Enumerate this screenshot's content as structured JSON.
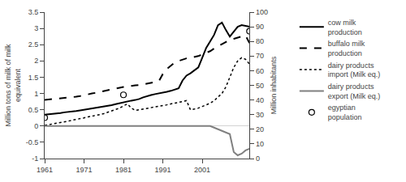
{
  "chart_data": {
    "type": "line",
    "x": [
      1961,
      1962,
      1963,
      1964,
      1965,
      1966,
      1967,
      1968,
      1969,
      1970,
      1971,
      1972,
      1973,
      1974,
      1975,
      1976,
      1977,
      1978,
      1979,
      1980,
      1981,
      1982,
      1983,
      1984,
      1985,
      1986,
      1987,
      1988,
      1989,
      1990,
      1991,
      1992,
      1993,
      1994,
      1995,
      1996,
      1997,
      1998,
      1999,
      2000,
      2001,
      2002,
      2003,
      2004,
      2005,
      2006,
      2007,
      2008,
      2009,
      2010,
      2011,
      2012,
      2013
    ],
    "xlim": [
      1961,
      2013
    ],
    "xticks": [
      1961,
      1971,
      1981,
      1991,
      2001
    ],
    "ylim": [
      -1.0,
      3.5
    ],
    "yticks": [
      -1.0,
      -0.5,
      0.0,
      0.5,
      1.0,
      1.5,
      2.0,
      2.5,
      3.0,
      3.5
    ],
    "y2lim": [
      0,
      100
    ],
    "y2ticks": [
      0,
      10,
      20,
      30,
      40,
      50,
      60,
      70,
      80,
      90,
      100
    ],
    "ylabel": "Million tons of milk of milk\nequivalent",
    "y2label": "Million inhabitants",
    "grid": false,
    "legend": "right",
    "series": [
      {
        "name": "cow milk\nproduction",
        "color": "#000000",
        "line_style": "solid",
        "values": [
          0.35,
          0.36,
          0.37,
          0.38,
          0.4,
          0.42,
          0.43,
          0.44,
          0.46,
          0.48,
          0.5,
          0.52,
          0.53,
          0.55,
          0.57,
          0.59,
          0.62,
          0.64,
          0.67,
          0.7,
          0.72,
          0.75,
          0.78,
          0.8,
          0.83,
          0.88,
          0.92,
          0.95,
          0.98,
          1.0,
          1.02,
          1.05,
          1.08,
          1.12,
          1.16,
          1.4,
          1.55,
          1.62,
          1.7,
          1.8,
          2.1,
          2.4,
          2.6,
          2.8,
          3.1,
          3.18,
          2.95,
          2.75,
          2.9,
          3.05,
          3.1,
          3.08,
          3.05
        ]
      },
      {
        "name": "buffalo milk\nproduction",
        "color": "#000000",
        "line_style": "dash",
        "values": [
          0.8,
          0.82,
          0.83,
          0.84,
          0.85,
          0.86,
          0.87,
          0.88,
          0.9,
          0.92,
          0.95,
          0.97,
          1.0,
          1.02,
          1.05,
          1.08,
          1.1,
          1.13,
          1.15,
          1.18,
          1.2,
          1.22,
          1.24,
          1.25,
          1.26,
          1.28,
          1.3,
          1.32,
          1.35,
          1.38,
          1.6,
          1.75,
          1.85,
          1.95,
          2.0,
          2.05,
          2.08,
          2.1,
          2.12,
          2.15,
          2.2,
          2.25,
          2.3,
          2.38,
          2.45,
          2.52,
          2.58,
          2.65,
          2.68,
          2.72,
          2.75,
          2.78,
          2.55
        ]
      },
      {
        "name": "dairy products\nimport (Milk eq.)",
        "color": "#000000",
        "line_style": "dot",
        "values": [
          0.02,
          0.04,
          0.06,
          0.08,
          0.1,
          0.12,
          0.15,
          0.18,
          0.2,
          0.22,
          0.25,
          0.28,
          0.3,
          0.32,
          0.35,
          0.38,
          0.42,
          0.46,
          0.5,
          0.55,
          0.62,
          0.68,
          0.55,
          0.48,
          0.5,
          0.52,
          0.54,
          0.56,
          0.58,
          0.6,
          0.62,
          0.65,
          0.68,
          0.7,
          0.72,
          0.75,
          0.78,
          0.5,
          0.52,
          0.55,
          0.6,
          0.65,
          0.7,
          0.78,
          0.88,
          1.0,
          1.2,
          1.5,
          1.8,
          2.0,
          2.1,
          2.05,
          1.9
        ]
      },
      {
        "name": "dairy products\nexport (Milk eq.)",
        "color": "#808080",
        "line_style": "solid",
        "values": [
          0.0,
          0.0,
          0.0,
          0.0,
          0.0,
          0.0,
          0.0,
          0.0,
          0.0,
          0.0,
          0.0,
          0.0,
          0.0,
          0.0,
          0.0,
          0.0,
          0.0,
          0.0,
          0.0,
          0.0,
          0.0,
          0.0,
          0.0,
          0.0,
          0.0,
          0.0,
          0.0,
          0.0,
          0.0,
          0.0,
          0.0,
          0.0,
          0.0,
          0.0,
          0.0,
          0.0,
          0.0,
          0.0,
          0.0,
          0.0,
          0.0,
          0.0,
          0.0,
          -0.05,
          -0.1,
          -0.15,
          -0.2,
          -0.25,
          -0.8,
          -0.9,
          -0.85,
          -0.75,
          -0.7
        ]
      },
      {
        "name": "egyptian\npopulation",
        "color": "#000000",
        "type": "scatter",
        "marker": "circle-open",
        "axis": "y2",
        "values": [
          27.9,
          null,
          null,
          null,
          null,
          null,
          null,
          null,
          null,
          null,
          null,
          null,
          null,
          null,
          null,
          null,
          null,
          null,
          null,
          null,
          43.5,
          null,
          null,
          null,
          null,
          null,
          null,
          null,
          null,
          null,
          null,
          null,
          null,
          null,
          null,
          null,
          null,
          null,
          null,
          null,
          null,
          null,
          null,
          null,
          null,
          null,
          null,
          null,
          null,
          null,
          null,
          null,
          87.0
        ]
      }
    ]
  }
}
